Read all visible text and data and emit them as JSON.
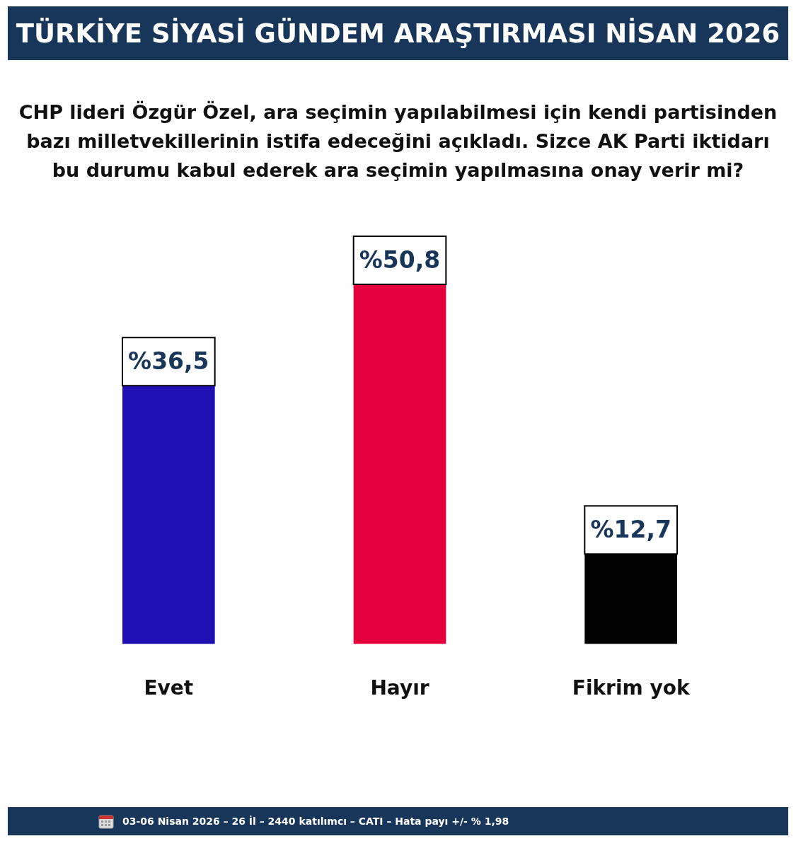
{
  "chart_data": {
    "type": "bar",
    "title": "TÜRKİYE SİYASİ GÜNDEM ARAŞTIRMASI NİSAN 2026",
    "subtitle": "CHP lideri Özgür Özel, ara seçimin yapılabilmesi için kendi partisinden bazı milletvekillerinin istifa edeceğini açıkladı. Sizce AK Parti iktidarı bu durumu kabul ederek ara seçimin yapılmasına onay verir mi?",
    "categories": [
      "Evet",
      "Hayır",
      "Fikrim yok"
    ],
    "values": [
      36.5,
      50.8,
      12.7
    ],
    "colors": [
      "#1f10b4",
      "#e4003c",
      "#000000"
    ],
    "value_labels": [
      "%36,5",
      "%50,8",
      "%12,7"
    ],
    "annotations": [
      "03-06 Nisan 2026 – 26 İl – 2440 katılımcı – CATI – Hata payı +/- % 1,98"
    ],
    "grid": false,
    "legend": false
  }
}
